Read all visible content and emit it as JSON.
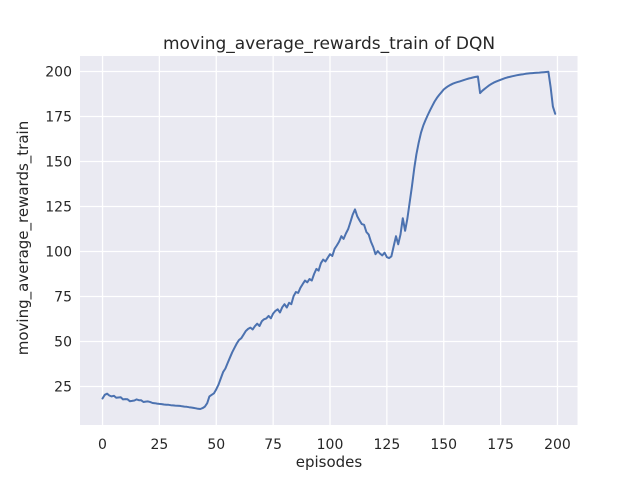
{
  "chart": {
    "title": "moving_average_rewards_train of DQN",
    "xlabel": "episodes",
    "ylabel": "moving_average_rewards_train"
  },
  "chart_data": {
    "type": "line",
    "title": "moving_average_rewards_train of DQN",
    "xlabel": "episodes",
    "ylabel": "moving_average_rewards_train",
    "x_ticks": [
      0,
      25,
      50,
      75,
      100,
      125,
      150,
      175,
      200
    ],
    "y_ticks": [
      25,
      50,
      75,
      100,
      125,
      150,
      175,
      200
    ],
    "xlim": [
      -9.9,
      208.8
    ],
    "ylim": [
      3.6,
      208.6
    ],
    "grid": true,
    "legend": false,
    "panel_background": "#EAEAF2",
    "grid_color": "#FFFFFF",
    "line_color": "#4C72B0",
    "text_color": "#262626",
    "series": [
      {
        "name": "moving_average_rewards_train",
        "x_start": 0,
        "x_step": 1,
        "values": [
          18.3,
          20.4,
          21.0,
          20.0,
          19.5,
          19.8,
          18.7,
          18.9,
          19.0,
          17.8,
          18.0,
          17.9,
          16.8,
          17.0,
          17.2,
          17.8,
          17.4,
          17.3,
          16.4,
          16.6,
          16.7,
          16.3,
          15.8,
          15.7,
          15.5,
          15.3,
          15.2,
          15.0,
          14.9,
          14.8,
          14.6,
          14.5,
          14.4,
          14.3,
          14.2,
          14.0,
          13.8,
          13.7,
          13.5,
          13.3,
          13.1,
          12.9,
          12.6,
          12.5,
          13.0,
          13.8,
          15.7,
          19.5,
          20.4,
          21.2,
          23.5,
          26.0,
          29.5,
          33.0,
          35.0,
          38.0,
          41.0,
          44.0,
          46.5,
          48.8,
          50.8,
          51.8,
          53.8,
          55.8,
          57.0,
          57.7,
          56.7,
          58.5,
          59.9,
          58.6,
          61.2,
          62.3,
          62.8,
          64.2,
          62.9,
          65.5,
          67.0,
          67.9,
          66.1,
          69.0,
          70.7,
          68.9,
          71.5,
          70.7,
          75.2,
          77.5,
          77.0,
          79.8,
          81.9,
          83.8,
          82.9,
          84.7,
          83.8,
          87.5,
          90.3,
          89.4,
          93.5,
          95.5,
          94.5,
          96.5,
          98.5,
          97.5,
          101.5,
          103.3,
          105.5,
          108.5,
          107.0,
          110.0,
          112.5,
          116.5,
          120.5,
          123.4,
          119.5,
          117.2,
          115.2,
          114.8,
          110.8,
          109.4,
          105.5,
          102.5,
          98.5,
          100.2,
          98.8,
          97.8,
          99.3,
          96.8,
          96.3,
          97.3,
          103.0,
          108.5,
          104.0,
          109.5,
          118.5,
          111.5,
          118.0,
          127.0,
          136.0,
          146.0,
          154.0,
          160.5,
          166.0,
          170.0,
          173.0,
          175.8,
          178.5,
          181.0,
          183.3,
          185.3,
          187.0,
          188.5,
          190.0,
          191.0,
          191.9,
          192.6,
          193.2,
          193.7,
          194.1,
          194.5,
          194.9,
          195.3,
          195.7,
          196.1,
          196.4,
          196.7,
          197.0,
          197.2,
          188.0,
          189.3,
          190.4,
          191.4,
          192.3,
          193.1,
          193.8,
          194.4,
          194.9,
          195.4,
          195.9,
          196.3,
          196.7,
          197.0,
          197.3,
          197.6,
          197.9,
          198.1,
          198.3,
          198.5,
          198.7,
          198.9,
          199.0,
          199.1,
          199.2,
          199.3,
          199.4,
          199.5,
          199.6,
          199.7,
          199.8,
          191.0,
          180.5,
          176.5
        ]
      }
    ]
  }
}
